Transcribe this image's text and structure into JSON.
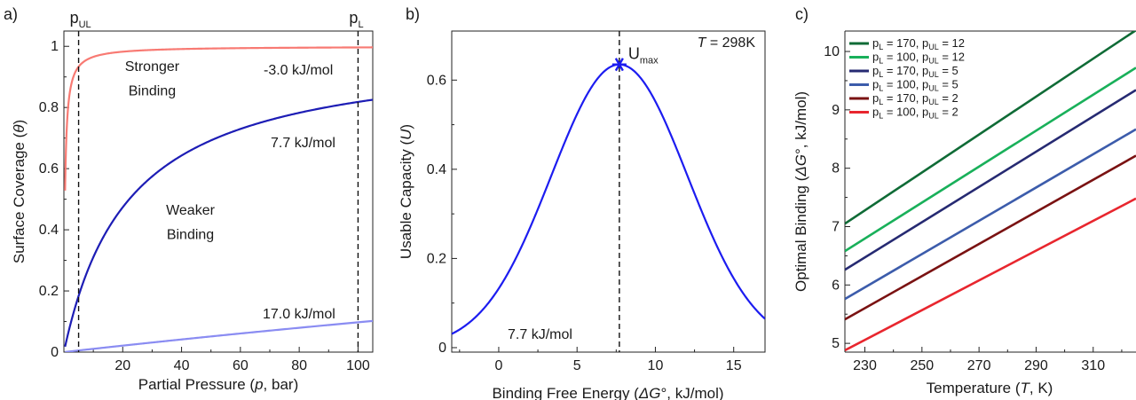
{
  "chart_data": [
    {
      "panel": "a)",
      "type": "line",
      "title": "",
      "xlabel": "Partial Pressure (p, bar)",
      "ylabel": "Surface Coverage (θ)",
      "xlim": [
        0,
        105
      ],
      "ylim": [
        0,
        1.05
      ],
      "xticks": [
        "20",
        "40",
        "60",
        "80",
        "100"
      ],
      "yticks": [
        "0",
        "0.2",
        "0.4",
        "0.6",
        "0.8",
        "1"
      ],
      "series": [
        {
          "name": "-3.0 kJ/mol",
          "color": "#f87a73",
          "kind": "langmuir",
          "K": 2.8
        },
        {
          "name": "7.7 kJ/mol",
          "color": "#1d1db5",
          "kind": "langmuir",
          "K": 0.045
        },
        {
          "name": "17.0 kJ/mol",
          "color": "#8a8cf2",
          "kind": "langmuir",
          "K": 0.00108
        }
      ],
      "vlines": [
        {
          "x": 5,
          "label": "p",
          "sub": "UL"
        },
        {
          "x": 100,
          "label": "p",
          "sub": "L"
        }
      ],
      "annotations": [
        {
          "text": "Stronger",
          "x": 30,
          "y": 0.92
        },
        {
          "text": "Binding",
          "x": 30,
          "y": 0.84
        },
        {
          "text": "Weaker",
          "x": 43,
          "y": 0.45
        },
        {
          "text": "Binding",
          "x": 43,
          "y": 0.37
        }
      ]
    },
    {
      "panel": "b)",
      "type": "line",
      "title": "",
      "xlabel": "Binding Free Energy (ΔG°, kJ/mol)",
      "ylabel": "Usable Capacity (U)",
      "xlim": [
        -3,
        17
      ],
      "ylim": [
        -0.01,
        0.71
      ],
      "xticks": [
        "0",
        "5",
        "10",
        "15"
      ],
      "yticks": [
        "0",
        "0.2",
        "0.4",
        "0.6"
      ],
      "series": [
        {
          "name": "",
          "color": "#1c1cf0",
          "kind": "gaussian",
          "peak": 0.635,
          "center": 7.7,
          "sigma": 4.35
        }
      ],
      "max_point": {
        "x": 7.7,
        "y": 0.635,
        "label": "U",
        "sub": "max"
      },
      "vline": {
        "x": 7.7,
        "label": "7.7 kJ/mol"
      },
      "temperature_label": {
        "italic": "T",
        "rest": " = 298K"
      }
    },
    {
      "panel": "c)",
      "type": "line",
      "title": "",
      "xlabel": "Temperature (T, K)",
      "ylabel": "Optimal Binding (ΔG°, kJ/mol)",
      "xlim": [
        223,
        325
      ],
      "ylim": [
        4.85,
        10.35
      ],
      "xticks": [
        "230",
        "250",
        "270",
        "290",
        "310"
      ],
      "yticks": [
        "5",
        "6",
        "7",
        "8",
        "9",
        "10"
      ],
      "series": [
        {
          "name": "pL = 170, pUL = 12",
          "legend": {
            "pL": "170",
            "pUL": "12"
          },
          "color": "#0f6b36",
          "y_start": 7.05,
          "slope": 0.0325
        },
        {
          "name": "pL = 100, pUL = 12",
          "legend": {
            "pL": "100",
            "pUL": "12"
          },
          "color": "#19b05a",
          "y_start": 6.58,
          "slope": 0.0308
        },
        {
          "name": "pL = 170, pUL = 5",
          "legend": {
            "pL": "170",
            "pUL": "5"
          },
          "color": "#262a72",
          "y_start": 6.26,
          "slope": 0.0302
        },
        {
          "name": "pL = 100, pUL = 5",
          "legend": {
            "pL": "100",
            "pUL": "5"
          },
          "color": "#3c5cab",
          "y_start": 5.76,
          "slope": 0.0285
        },
        {
          "name": "pL = 170, pUL = 2",
          "legend": {
            "pL": "170",
            "pUL": "2"
          },
          "color": "#7a1212",
          "y_start": 5.41,
          "slope": 0.0275
        },
        {
          "name": "pL = 100, pUL = 2",
          "legend": {
            "pL": "100",
            "pUL": "2"
          },
          "color": "#e8262e",
          "y_start": 4.88,
          "slope": 0.0255
        }
      ],
      "legend_placement": "top-left"
    }
  ]
}
